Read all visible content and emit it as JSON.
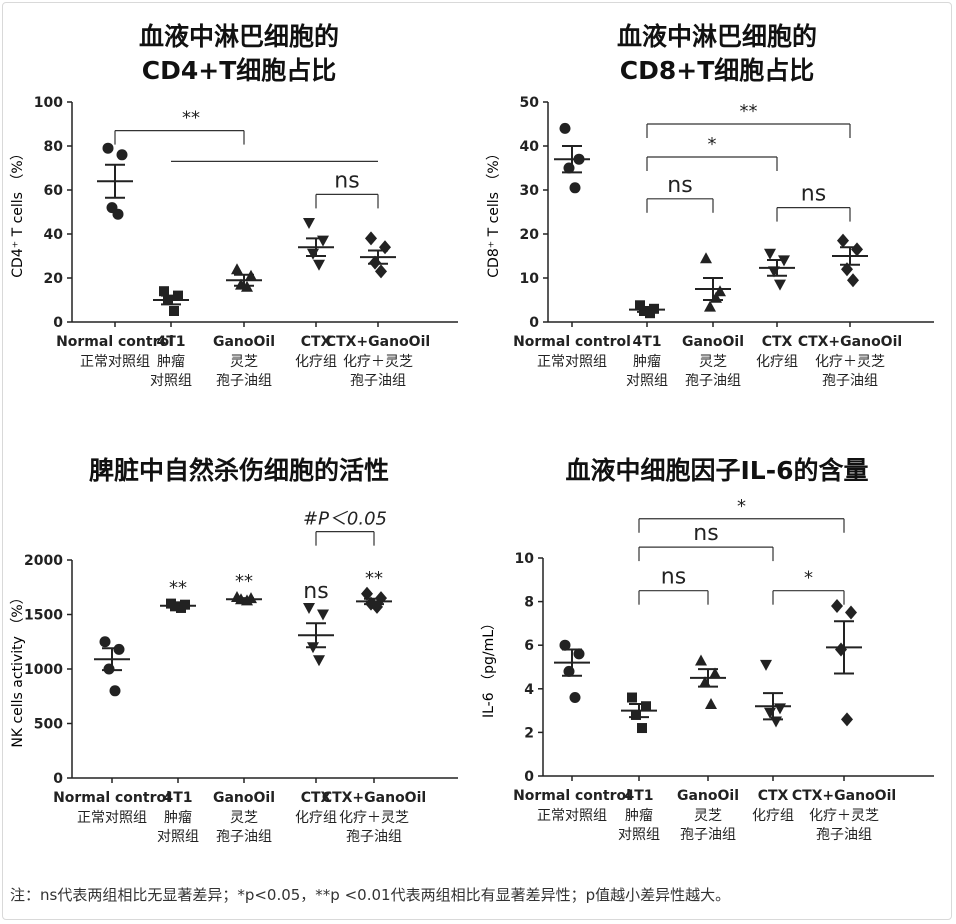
{
  "footnote": "注：ns代表两组相比无显著差异；*p<0.05，**p <0.01代表两组相比有显著差异性；p值越小差异性越大。",
  "chart_data": [
    {
      "type": "scatter",
      "title": [
        "血液中淋巴细胞的",
        "CD4+T细胞占比"
      ],
      "ylabel": "CD4⁺ T cells （%）",
      "ylim": [
        0,
        100
      ],
      "yticks": [
        0,
        20,
        40,
        60,
        80,
        100
      ],
      "categories": [
        "Normal control",
        "4T1",
        "GanoOil",
        "CTX",
        "CTX+GanoOil"
      ],
      "category_subs": [
        [
          "正常对照组"
        ],
        [
          "肿瘤",
          "对照组"
        ],
        [
          "灵芝",
          "孢子油组"
        ],
        [
          "化疗组"
        ],
        [
          "化疗＋灵芝",
          "孢子油组"
        ]
      ],
      "category_sub_colors": [
        "#222",
        "#8a8a8a",
        "#222",
        "#8a8a8a",
        "#222"
      ],
      "points": [
        [
          79,
          76,
          52,
          49
        ],
        [
          14,
          12,
          10,
          5
        ],
        [
          24,
          21,
          17,
          16
        ],
        [
          45,
          37,
          31,
          26
        ],
        [
          38,
          34,
          27,
          23
        ]
      ],
      "markers": [
        "circle",
        "square",
        "triangle-up",
        "triangle-down",
        "diamond"
      ],
      "mean": [
        64,
        10,
        19,
        34,
        29.5
      ],
      "sem": [
        7.5,
        2,
        2.5,
        4,
        3
      ],
      "significance": [
        {
          "from": 0,
          "to": 2,
          "y": 87,
          "label": "**",
          "label_at": 1,
          "style": "bracket"
        },
        {
          "from": 1,
          "to": 4,
          "y": 73,
          "label": "",
          "style": "line"
        },
        {
          "from": 3,
          "to": 4,
          "y": 58,
          "label": "ns",
          "style": "bracket"
        }
      ]
    },
    {
      "type": "scatter",
      "title": [
        "血液中淋巴细胞的",
        "CD8+T细胞占比"
      ],
      "ylabel": "CD8⁺ T cells （%）",
      "ylim": [
        0,
        50
      ],
      "yticks": [
        0,
        10,
        20,
        30,
        40,
        50
      ],
      "categories": [
        "Normal control",
        "4T1",
        "GanoOil",
        "CTX",
        "CTX+GanoOil"
      ],
      "category_subs": [
        [
          "正常对照组"
        ],
        [
          "肿瘤",
          "对照组"
        ],
        [
          "灵芝",
          "孢子油组"
        ],
        [
          "化疗组"
        ],
        [
          "化疗＋灵芝",
          "孢子油组"
        ]
      ],
      "category_sub_colors": [
        "#222",
        "#8a8a8a",
        "#222",
        "#8a8a8a",
        "#222"
      ],
      "points": [
        [
          44,
          37,
          35,
          30.5
        ],
        [
          3.8,
          3,
          2.5,
          2
        ],
        [
          14.5,
          7,
          3.5,
          5.5
        ],
        [
          15.5,
          14,
          11.5,
          8.5
        ],
        [
          18.5,
          16.5,
          12,
          9.5
        ]
      ],
      "markers": [
        "circle",
        "square",
        "triangle-up",
        "triangle-down",
        "diamond"
      ],
      "mean": [
        37,
        2.8,
        7.5,
        12.3,
        15
      ],
      "sem": [
        3,
        0.5,
        2.5,
        1.8,
        2
      ],
      "significance": [
        {
          "from": 1,
          "to": 4,
          "y": 45,
          "label": "**",
          "style": "bracket"
        },
        {
          "from": 1,
          "to": 3,
          "y": 37.5,
          "label": "*",
          "style": "bracket"
        },
        {
          "from": 1,
          "to": 2,
          "y": 28,
          "label": "ns",
          "style": "bracket"
        },
        {
          "from": 3,
          "to": 4,
          "y": 26,
          "label": "ns",
          "style": "bracket"
        }
      ]
    },
    {
      "type": "scatter",
      "title": [
        "脾脏中自然杀伤细胞的活性"
      ],
      "ylabel": "NK cells activity （%）",
      "ylim": [
        0,
        2000
      ],
      "yticks": [
        0,
        500,
        1000,
        1500,
        2000
      ],
      "categories": [
        "Normal control",
        "4T1",
        "GanoOil",
        "CTX",
        "CTX+GanoOil"
      ],
      "category_subs": [
        [
          "正常对照组"
        ],
        [
          "肿瘤",
          "对照组"
        ],
        [
          "灵芝",
          "孢子油组"
        ],
        [
          "化疗组"
        ],
        [
          "化疗＋灵芝",
          "孢子油组"
        ]
      ],
      "category_sub_colors": [
        "#222",
        "#8a8a8a",
        "#222",
        "#8a8a8a",
        "#222"
      ],
      "points": [
        [
          1250,
          1180,
          1000,
          800
        ],
        [
          1600,
          1590,
          1575,
          1560
        ],
        [
          1660,
          1650,
          1640,
          1630
        ],
        [
          1560,
          1500,
          1200,
          1080
        ],
        [
          1690,
          1650,
          1600,
          1570
        ]
      ],
      "markers": [
        "circle",
        "square",
        "triangle-up",
        "triangle-down",
        "diamond"
      ],
      "mean": [
        1090,
        1580,
        1640,
        1310,
        1620
      ],
      "sem": [
        100,
        12,
        10,
        110,
        25
      ],
      "point_labels": [
        "",
        "**",
        "**",
        "ns",
        "**"
      ],
      "significance": [
        {
          "from": 3,
          "to": 4,
          "y": 2260,
          "label": "#P＜0.05",
          "style": "bracket"
        }
      ]
    },
    {
      "type": "scatter",
      "title": [
        "血液中细胞因子IL-6的含量"
      ],
      "ylabel": "IL-6 （pg/mL）",
      "ylim": [
        0,
        10
      ],
      "yticks": [
        0,
        2,
        4,
        6,
        8,
        10
      ],
      "categories": [
        "Normal control",
        "4T1",
        "GanoOil",
        "CTX",
        "CTX+GanoOil"
      ],
      "category_subs": [
        [
          "正常对照组"
        ],
        [
          "肿瘤",
          "对照组"
        ],
        [
          "灵芝",
          "孢子油组"
        ],
        [
          "化疗组"
        ],
        [
          "化疗＋灵芝",
          "孢子油组"
        ]
      ],
      "category_sub_colors": [
        "#222",
        "#8a8a8a",
        "#222",
        "#8a8a8a",
        "#222"
      ],
      "points": [
        [
          6,
          5.6,
          4.8,
          3.6
        ],
        [
          3.6,
          3.2,
          2.8,
          2.2
        ],
        [
          5.3,
          4.7,
          4.3,
          3.3
        ],
        [
          5.1,
          3.1,
          2.9,
          2.5
        ],
        [
          7.8,
          7.5,
          5.8,
          2.6
        ]
      ],
      "markers": [
        "circle",
        "square",
        "triangle-up",
        "triangle-down",
        "diamond"
      ],
      "mean": [
        5.2,
        3,
        4.5,
        3.2,
        5.9
      ],
      "sem": [
        0.6,
        0.3,
        0.4,
        0.6,
        1.2
      ],
      "significance": [
        {
          "from": 1,
          "to": 4,
          "y": 11.8,
          "label": "*",
          "style": "bracket"
        },
        {
          "from": 1,
          "to": 3,
          "y": 10.5,
          "label": "ns",
          "style": "bracket"
        },
        {
          "from": 1,
          "to": 2,
          "y": 8.5,
          "label": "ns",
          "style": "bracket"
        },
        {
          "from": 3,
          "to": 4,
          "y": 8.5,
          "label": "*",
          "style": "bracket"
        }
      ]
    }
  ]
}
